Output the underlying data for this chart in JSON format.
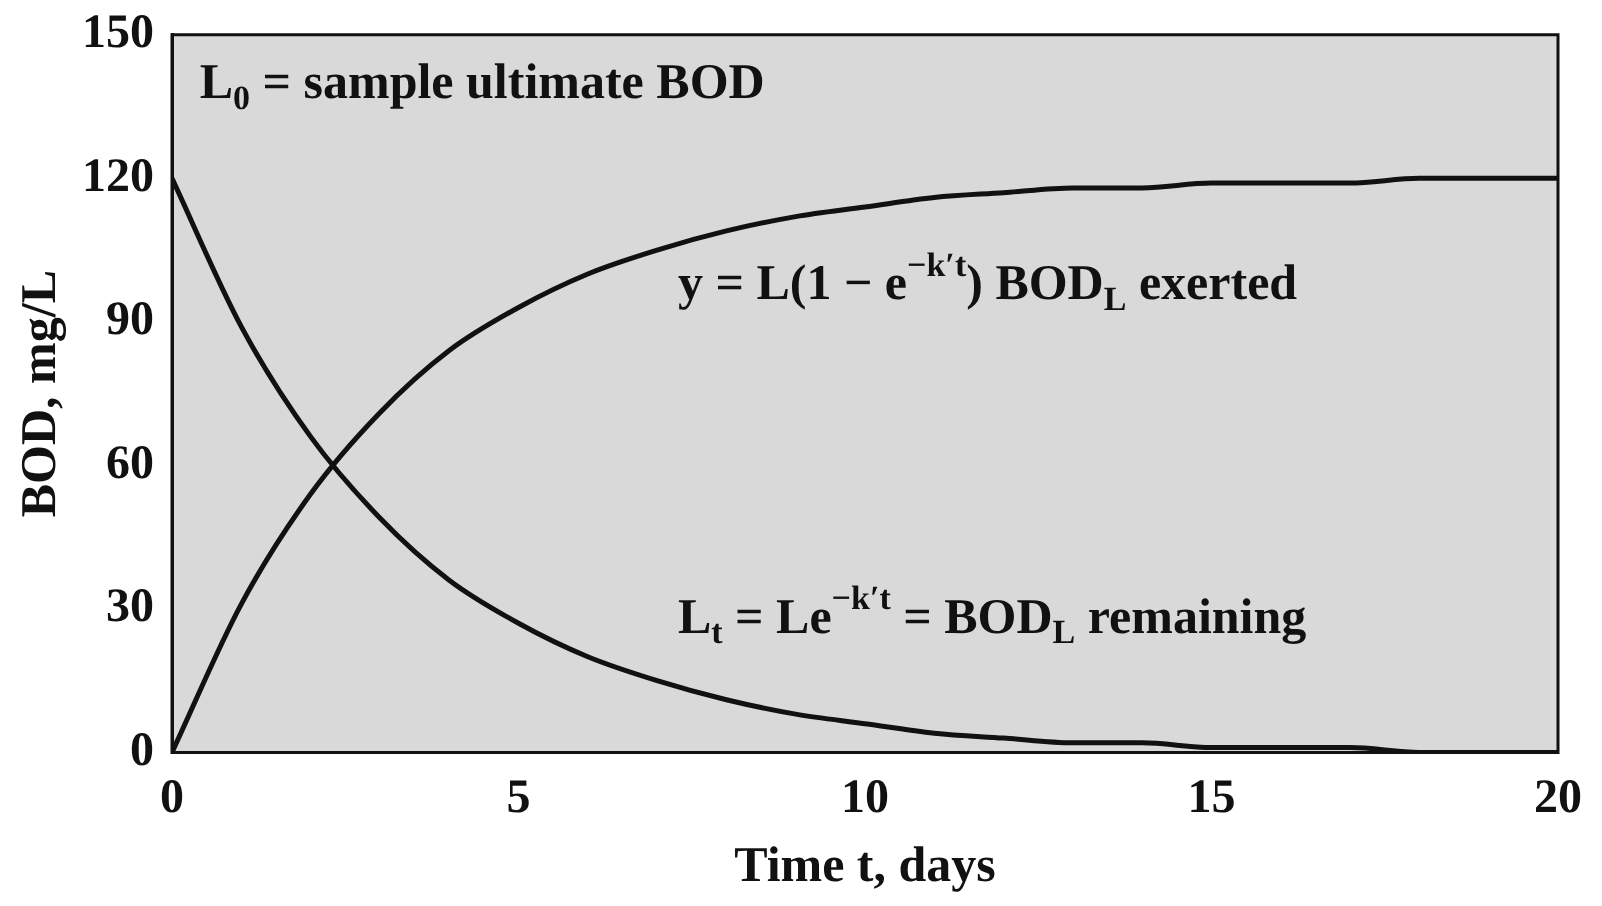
{
  "chart_data": {
    "type": "line",
    "xlabel": "Time t, days",
    "ylabel": "BOD, mg/L",
    "x": [
      0,
      1,
      2,
      3,
      4,
      5,
      6,
      7,
      8,
      9,
      10,
      11,
      12,
      13,
      14,
      15,
      16,
      17,
      18,
      19,
      20
    ],
    "series": [
      {
        "color": "#111111",
        "values": [
          0,
          31,
          54,
          71,
          84,
          93,
          100,
          105,
          109,
          112,
          114,
          116,
          117,
          118,
          118,
          119,
          119,
          119,
          120,
          120,
          120
        ]
      },
      {
        "color": "#111111",
        "values": [
          120,
          89,
          66,
          49,
          36,
          27,
          20,
          15,
          11,
          8,
          6,
          4,
          3,
          2,
          2,
          1,
          1,
          1,
          0,
          0,
          0
        ]
      }
    ],
    "xlim": [
      0,
      20
    ],
    "xticks": [
      0,
      5,
      10,
      15,
      20
    ],
    "ylim": [
      0,
      150
    ],
    "yticks": [
      0,
      30,
      60,
      90,
      120,
      150
    ],
    "grid": false,
    "legend": false,
    "marker": "none",
    "line_style": "solid",
    "annotations": [
      "L$_{0}$ = sample ultimate BOD",
      "y = L(1 − e$^{−k′t}$) BOD$_{L}$ exerted",
      "L$_{t}$ = Le$^{−k′t}$ = BOD$_{L}$ remaining"
    ]
  }
}
